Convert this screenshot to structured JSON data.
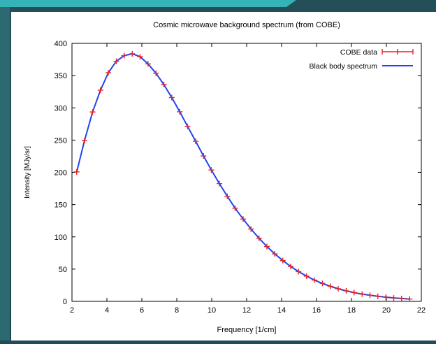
{
  "chart_data": {
    "type": "line",
    "title": "Cosmic microwave background spectrum (from COBE)",
    "xlabel": "Frequency [1/cm]",
    "ylabel": "Intensity [MJy/sr]",
    "xlim": [
      2,
      22
    ],
    "ylim": [
      0,
      400
    ],
    "x_ticks": [
      2,
      4,
      6,
      8,
      10,
      12,
      14,
      16,
      18,
      20,
      22
    ],
    "y_ticks": [
      0,
      50,
      100,
      150,
      200,
      250,
      300,
      350,
      400
    ],
    "grid": false,
    "legend_position": "top-right",
    "series": [
      {
        "name": "COBE data",
        "style": "points-with-errorbars",
        "color": "#e8202a",
        "x": [
          2.27,
          2.72,
          3.18,
          3.63,
          4.08,
          4.54,
          4.99,
          5.45,
          5.9,
          6.35,
          6.81,
          7.26,
          7.71,
          8.17,
          8.62,
          9.08,
          9.53,
          9.98,
          10.44,
          10.89,
          11.34,
          11.8,
          12.25,
          12.71,
          13.16,
          13.61,
          14.07,
          14.52,
          14.97,
          15.43,
          15.88,
          16.34,
          16.79,
          17.24,
          17.7,
          18.15,
          18.61,
          19.06,
          19.51,
          19.97,
          20.42,
          20.87,
          21.33
        ],
        "y": [
          200.7,
          249.4,
          293.6,
          327.4,
          354.4,
          372.2,
          381.0,
          383.8,
          379.3,
          368.2,
          353.6,
          336.2,
          316.0,
          293.9,
          271.2,
          248.2,
          225.4,
          203.6,
          182.6,
          162.9,
          144.4,
          127.6,
          112.1,
          97.8,
          85.0,
          73.6,
          63.2,
          54.2,
          46.1,
          39.1,
          33.0,
          27.8,
          23.3,
          19.5,
          16.3,
          13.6,
          11.3,
          9.4,
          7.8,
          6.5,
          5.3,
          4.4,
          3.6
        ]
      },
      {
        "name": "Black body spectrum",
        "style": "line",
        "color": "#2244ee",
        "x": [
          2.27,
          2.72,
          3.18,
          3.63,
          4.08,
          4.54,
          4.99,
          5.45,
          5.9,
          6.35,
          6.81,
          7.26,
          7.71,
          8.17,
          8.62,
          9.08,
          9.53,
          9.98,
          10.44,
          10.89,
          11.34,
          11.8,
          12.25,
          12.71,
          13.16,
          13.61,
          14.07,
          14.52,
          14.97,
          15.43,
          15.88,
          16.34,
          16.79,
          17.24,
          17.7,
          18.15,
          18.61,
          19.06,
          19.51,
          19.97,
          20.42,
          20.87,
          21.33
        ],
        "y": [
          200.7,
          249.4,
          293.6,
          327.4,
          354.4,
          372.2,
          381.0,
          383.8,
          379.3,
          368.2,
          353.6,
          336.2,
          316.0,
          293.9,
          271.2,
          248.2,
          225.4,
          203.6,
          182.6,
          162.9,
          144.4,
          127.6,
          112.1,
          97.8,
          85.0,
          73.6,
          63.2,
          54.2,
          46.1,
          39.1,
          33.0,
          27.8,
          23.3,
          19.5,
          16.3,
          13.6,
          11.3,
          9.4,
          7.8,
          6.5,
          5.3,
          4.4,
          3.6
        ]
      }
    ]
  },
  "colors": {
    "background": "#1f4d57",
    "accent": "#35b3b8",
    "panel": "#ffffff",
    "axis": "#000000"
  }
}
